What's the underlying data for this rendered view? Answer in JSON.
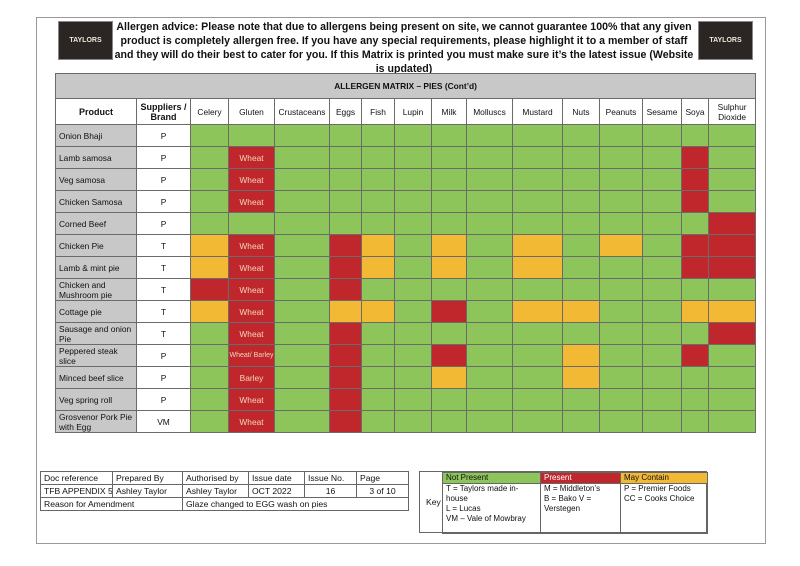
{
  "advice": "Allergen advice: Please note that due to allergens being present on site, we cannot guarantee 100% that any given product is completely allergen free. If you have any special requirements, please highlight it to a member of staff and they will do their best to cater for you. If this Matrix is printed you must make sure it’s the latest issue (Website is updated)",
  "logo_text": "TAYLORS",
  "title": "ALLERGEN MATRIX – PIES (Cont’d)",
  "headers": {
    "product": "Product",
    "supplier": "Suppliers / Brand",
    "allergens": [
      "Celery",
      "Gluten",
      "Crustaceans",
      "Eggs",
      "Fish",
      "Lupin",
      "Milk",
      "Molluscs",
      "Mustard",
      "Nuts",
      "Peanuts",
      "Sesame",
      "Soya",
      "Sulphur Dioxide"
    ]
  },
  "colors": {
    "not_present": "#8dc55a",
    "present": "#c0272d",
    "may_contain": "#f2b934"
  },
  "rows": [
    {
      "product": "Onion Bhaji",
      "supplier": "P",
      "cells": [
        "g",
        "g",
        "g",
        "g",
        "g",
        "g",
        "g",
        "g",
        "g",
        "g",
        "g",
        "g",
        "g",
        "g"
      ],
      "gluten_text": ""
    },
    {
      "product": "Lamb samosa",
      "supplier": "P",
      "cells": [
        "g",
        "r",
        "g",
        "g",
        "g",
        "g",
        "g",
        "g",
        "g",
        "g",
        "g",
        "g",
        "r",
        "g"
      ],
      "gluten_text": "Wheat"
    },
    {
      "product": "Veg samosa",
      "supplier": "P",
      "cells": [
        "g",
        "r",
        "g",
        "g",
        "g",
        "g",
        "g",
        "g",
        "g",
        "g",
        "g",
        "g",
        "r",
        "g"
      ],
      "gluten_text": "Wheat"
    },
    {
      "product": "Chicken Samosa",
      "supplier": "P",
      "cells": [
        "g",
        "r",
        "g",
        "g",
        "g",
        "g",
        "g",
        "g",
        "g",
        "g",
        "g",
        "g",
        "r",
        "g"
      ],
      "gluten_text": "Wheat"
    },
    {
      "product": "Corned Beef",
      "supplier": "P",
      "cells": [
        "g",
        "g",
        "g",
        "g",
        "g",
        "g",
        "g",
        "g",
        "g",
        "g",
        "g",
        "g",
        "g",
        "r"
      ],
      "gluten_text": ""
    },
    {
      "product": "Chicken Pie",
      "supplier": "T",
      "cells": [
        "y",
        "r",
        "g",
        "r",
        "y",
        "g",
        "y",
        "g",
        "y",
        "g",
        "y",
        "g",
        "r",
        "r"
      ],
      "gluten_text": "Wheat"
    },
    {
      "product": "Lamb & mint pie",
      "supplier": "T",
      "cells": [
        "y",
        "r",
        "g",
        "r",
        "y",
        "g",
        "y",
        "g",
        "y",
        "g",
        "g",
        "g",
        "r",
        "r"
      ],
      "gluten_text": "Wheat"
    },
    {
      "product": "Chicken and Mushroom pie",
      "supplier": "T",
      "cells": [
        "r",
        "r",
        "g",
        "r",
        "g",
        "g",
        "g",
        "g",
        "g",
        "g",
        "g",
        "g",
        "g",
        "g"
      ],
      "gluten_text": "Wheat"
    },
    {
      "product": "Cottage pie",
      "supplier": "T",
      "cells": [
        "y",
        "r",
        "g",
        "y",
        "y",
        "g",
        "r",
        "g",
        "y",
        "y",
        "g",
        "g",
        "y",
        "y"
      ],
      "gluten_text": "Wheat"
    },
    {
      "product": "Sausage and onion Pie",
      "supplier": "T",
      "cells": [
        "g",
        "r",
        "g",
        "r",
        "g",
        "g",
        "g",
        "g",
        "g",
        "g",
        "g",
        "g",
        "g",
        "r"
      ],
      "gluten_text": "Wheat"
    },
    {
      "product": "Peppered steak slice",
      "supplier": "P",
      "cells": [
        "g",
        "r",
        "g",
        "r",
        "g",
        "g",
        "r",
        "g",
        "g",
        "y",
        "g",
        "g",
        "r",
        "g"
      ],
      "gluten_text": "Wheat/ Barley"
    },
    {
      "product": "Minced beef slice",
      "supplier": "P",
      "cells": [
        "g",
        "r",
        "g",
        "r",
        "g",
        "g",
        "y",
        "g",
        "g",
        "y",
        "g",
        "g",
        "g",
        "g"
      ],
      "gluten_text": "Barley"
    },
    {
      "product": "Veg spring roll",
      "supplier": "P",
      "cells": [
        "g",
        "r",
        "g",
        "r",
        "g",
        "g",
        "g",
        "g",
        "g",
        "g",
        "g",
        "g",
        "g",
        "g"
      ],
      "gluten_text": "Wheat"
    },
    {
      "product": "Grosvenor Pork Pie with Egg",
      "supplier": "VM",
      "cells": [
        "g",
        "r",
        "g",
        "r",
        "g",
        "g",
        "g",
        "g",
        "g",
        "g",
        "g",
        "g",
        "g",
        "g"
      ],
      "gluten_text": "Wheat"
    }
  ],
  "doc": {
    "h": [
      "Doc reference",
      "Prepared By",
      "Authorised by",
      "Issue date",
      "Issue No.",
      "Page"
    ],
    "v": [
      "TFB APPENDIX 5",
      "Ashley Taylor",
      "Ashley Taylor",
      "OCT 2022",
      "16",
      "3 of 10"
    ],
    "reason_label": "Reason for Amendment",
    "reason_value": "Glaze changed to EGG wash on pies"
  },
  "key": {
    "label": "Key",
    "not_present": "Not Present",
    "present": "Present",
    "may_contain": "May Contain",
    "col1": "T = Taylors made in-house\nL = Lucas\nVM – Vale of Mowbray",
    "col2": "M = Middleton’s\nB = Bako  V = Verstegen",
    "col3": "P = Premier Foods\nCC = Cooks Choice"
  }
}
